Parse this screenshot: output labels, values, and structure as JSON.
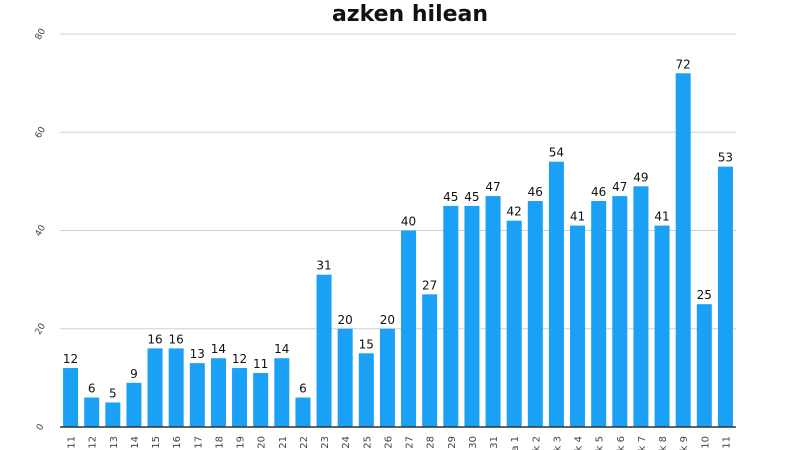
{
  "chart_data": {
    "type": "bar",
    "title": "azken hilean",
    "xlabel": "",
    "ylabel": "",
    "ylim": [
      0,
      80
    ],
    "yticks": [
      0,
      20,
      40,
      60,
      80
    ],
    "grid": true,
    "bar_color": "#1aa0f5",
    "categories": [
      "11",
      "12",
      "13",
      "14",
      "15",
      "16",
      "17",
      "18",
      "19",
      "20",
      "21",
      "22",
      "23",
      "24",
      "25",
      "26",
      "27",
      "28",
      "29",
      "30",
      "31",
      "a 1",
      "k 2",
      "k 3",
      "k 4",
      "k 5",
      "k 6",
      "k 7",
      "k 8",
      "k 9",
      "10",
      "11"
    ],
    "values": [
      12,
      6,
      5,
      9,
      16,
      16,
      13,
      14,
      12,
      11,
      14,
      6,
      31,
      20,
      15,
      20,
      40,
      27,
      45,
      45,
      47,
      42,
      46,
      54,
      41,
      46,
      47,
      49,
      41,
      72,
      25,
      53
    ]
  }
}
